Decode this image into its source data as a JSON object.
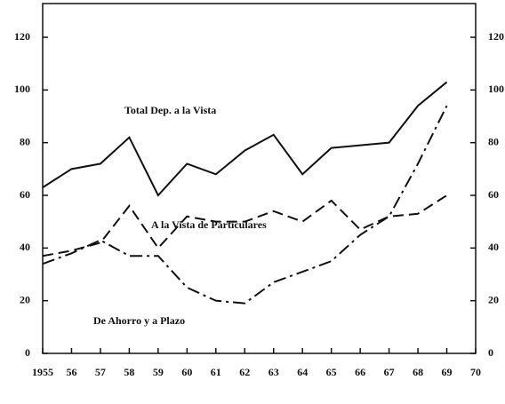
{
  "chart_data": {
    "type": "line",
    "x": [
      1955,
      1956,
      1957,
      1958,
      1959,
      1960,
      1961,
      1962,
      1963,
      1964,
      1965,
      1966,
      1967,
      1968,
      1969
    ],
    "series": [
      {
        "name": "Total Dep. a la Vista",
        "color": "#111111",
        "style": "solid",
        "values": [
          63,
          70,
          72,
          82,
          60,
          72,
          68,
          77,
          83,
          68,
          78,
          79,
          80,
          94,
          103
        ]
      },
      {
        "name": "A la Vista de Particulares",
        "color": "#111111",
        "style": "dashed",
        "values": [
          37,
          39,
          42,
          56,
          40,
          52,
          50,
          50,
          54,
          50,
          58,
          47,
          52,
          53,
          60
        ]
      },
      {
        "name": "De Ahorro y a Plazo",
        "color": "#111111",
        "style": "dashdot",
        "values": [
          34,
          38,
          43,
          37,
          37,
          25,
          20,
          19,
          27,
          31,
          35,
          45,
          52,
          72,
          94
        ]
      }
    ],
    "xlim": [
      1955,
      1970
    ],
    "xticks": [
      {
        "value": 1955,
        "label": "1955"
      },
      {
        "value": 1956,
        "label": "56"
      },
      {
        "value": 1957,
        "label": "57"
      },
      {
        "value": 1958,
        "label": "58"
      },
      {
        "value": 1959,
        "label": "59"
      },
      {
        "value": 1960,
        "label": "60"
      },
      {
        "value": 1961,
        "label": "61"
      },
      {
        "value": 1962,
        "label": "62"
      },
      {
        "value": 1963,
        "label": "63"
      },
      {
        "value": 1964,
        "label": "64"
      },
      {
        "value": 1965,
        "label": "65"
      },
      {
        "value": 1966,
        "label": "66"
      },
      {
        "value": 1967,
        "label": "67"
      },
      {
        "value": 1968,
        "label": "68"
      },
      {
        "value": 1969,
        "label": "69"
      },
      {
        "value": 1970,
        "label": "70"
      }
    ],
    "ylim": [
      0,
      120
    ],
    "yticks": [
      0,
      20,
      40,
      60,
      80,
      100,
      120
    ],
    "y2lim": [
      0,
      120
    ],
    "y2ticks": [
      0,
      20,
      40,
      60,
      80,
      100,
      120
    ],
    "grid": false
  }
}
